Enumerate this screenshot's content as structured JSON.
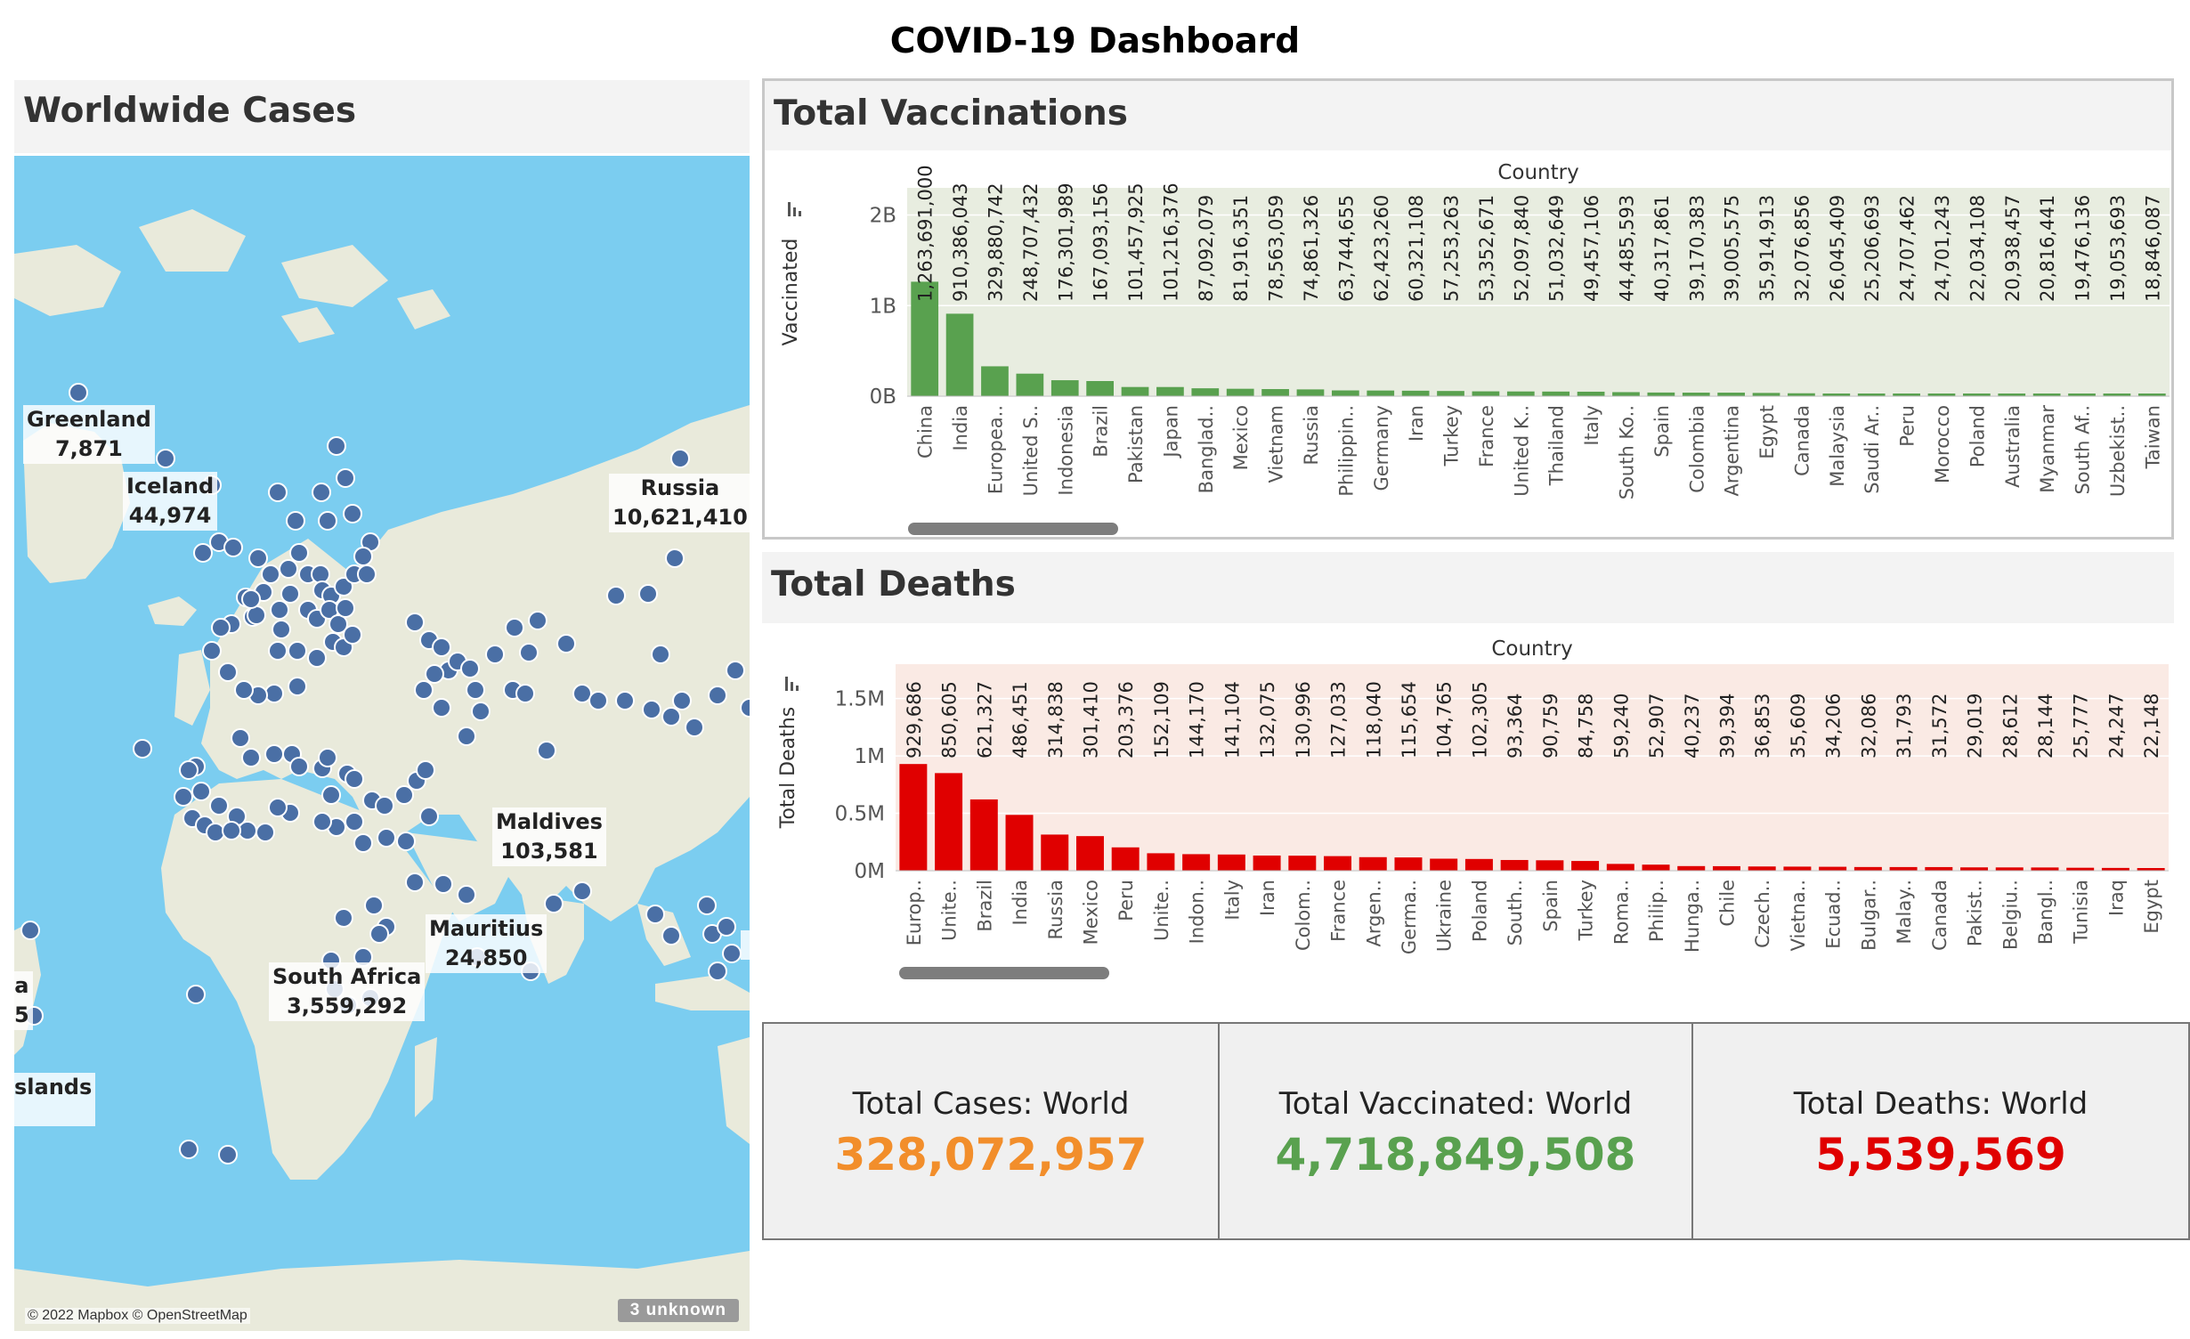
{
  "dashboard": {
    "title": "COVID-19 Dashboard"
  },
  "map_panel": {
    "title": "Worldwide Cases",
    "attribution": "© 2022 Mapbox © OpenStreetMap",
    "unknown_badge": "3 unknown",
    "point_color": "#4a6fa5",
    "labels": [
      {
        "name": "Greenland",
        "value": "7,871"
      },
      {
        "name": "Iceland",
        "value": "44,974"
      },
      {
        "name": "Russia",
        "value": "10,621,410"
      },
      {
        "name": "Maldives",
        "value": "103,581"
      },
      {
        "name": "Mauritius",
        "value": "24,850"
      },
      {
        "name": "South Africa",
        "value": "3,559,292"
      },
      {
        "name": "a",
        "value": "5"
      },
      {
        "name": "slands",
        "value": ""
      }
    ]
  },
  "vaccinations_panel": {
    "title": "Total Vaccinations",
    "header": "Country",
    "axis_label": "Vaccinated",
    "ticks": [
      "2B",
      "1B",
      "0B"
    ],
    "bar_color": "#59a14f",
    "band_color": "#e8ede0"
  },
  "deaths_panel": {
    "title": "Total Deaths",
    "header": "Country",
    "axis_label": "Total Deaths",
    "ticks": [
      "1.5M",
      "1M",
      "0.5M",
      "0M"
    ],
    "bar_color": "#e00000",
    "band_color": "#faeae4"
  },
  "kpis": [
    {
      "label": "Total Cases: World",
      "value": "328,072,957",
      "color": "#f28e2b"
    },
    {
      "label": "Total Vaccinated: World",
      "value": "4,718,849,508",
      "color": "#59a14f"
    },
    {
      "label": "Total Deaths: World",
      "value": "5,539,569",
      "color": "#e00000"
    }
  ],
  "chart_data": [
    {
      "type": "bar",
      "title": "Total Vaccinations",
      "xlabel": "Country",
      "ylabel": "Vaccinated",
      "ylim": [
        0,
        2300000000
      ],
      "categories": [
        "China",
        "India",
        "Europea..",
        "United S..",
        "Indonesia",
        "Brazil",
        "Pakistan",
        "Japan",
        "Banglad..",
        "Mexico",
        "Vietnam",
        "Russia",
        "Philippin..",
        "Germany",
        "Iran",
        "Turkey",
        "France",
        "United K..",
        "Thailand",
        "Italy",
        "South Ko..",
        "Spain",
        "Colombia",
        "Argentina",
        "Egypt",
        "Canada",
        "Malaysia",
        "Saudi Ar..",
        "Peru",
        "Morocco",
        "Poland",
        "Australia",
        "Myanmar",
        "South Af..",
        "Uzbekist..",
        "Taiwan"
      ],
      "values": [
        1263691000,
        910386043,
        329880742,
        248707432,
        176301989,
        167093156,
        101457925,
        101216376,
        87092079,
        81916351,
        78563059,
        74861326,
        63744655,
        62423260,
        60321108,
        57253263,
        53352671,
        52097840,
        51032649,
        49457106,
        44485593,
        40317861,
        39170383,
        39005575,
        35914913,
        32076856,
        26045409,
        25206693,
        24707462,
        24701243,
        22034108,
        20938457,
        20816441,
        19476136,
        19053693,
        18846087
      ],
      "data_labels": [
        "1,263,691,000",
        "910,386,043",
        "329,880,742",
        "248,707,432",
        "176,301,989",
        "167,093,156",
        "101,457,925",
        "101,216,376",
        "87,092,079",
        "81,916,351",
        "78,563,059",
        "74,861,326",
        "63,744,655",
        "62,423,260",
        "60,321,108",
        "57,253,263",
        "53,352,671",
        "52,097,840",
        "51,032,649",
        "49,457,106",
        "44,485,593",
        "40,317,861",
        "39,170,383",
        "39,005,575",
        "35,914,913",
        "32,076,856",
        "26,045,409",
        "25,206,693",
        "24,707,462",
        "24,701,243",
        "22,034,108",
        "20,938,457",
        "20,816,441",
        "19,476,136",
        "19,053,693",
        "18,846,087"
      ]
    },
    {
      "type": "bar",
      "title": "Total Deaths",
      "xlabel": "Country",
      "ylabel": "Total Deaths",
      "ylim": [
        0,
        1800000
      ],
      "categories": [
        "Europ..",
        "Unite..",
        "Brazil",
        "India",
        "Russia",
        "Mexico",
        "Peru",
        "Unite..",
        "Indon..",
        "Italy",
        "Iran",
        "Colom..",
        "France",
        "Argen..",
        "Germa..",
        "Ukraine",
        "Poland",
        "South..",
        "Spain",
        "Turkey",
        "Roma..",
        "Philip..",
        "Hunga..",
        "Chile",
        "Czech..",
        "Vietna..",
        "Ecuad..",
        "Bulgar..",
        "Malay..",
        "Canada",
        "Pakist..",
        "Belgiu..",
        "Bangl..",
        "Tunisia",
        "Iraq",
        "Egypt"
      ],
      "values": [
        929686,
        850605,
        621327,
        486451,
        314838,
        301410,
        203376,
        152109,
        144170,
        141104,
        132075,
        130996,
        127033,
        118040,
        115654,
        104765,
        102305,
        93364,
        90759,
        84758,
        59240,
        52907,
        40237,
        39394,
        36853,
        35609,
        34206,
        32086,
        31793,
        31572,
        29019,
        28612,
        28144,
        25777,
        24247,
        22148
      ],
      "data_labels": [
        "929,686",
        "850,605",
        "621,327",
        "486,451",
        "314,838",
        "301,410",
        "203,376",
        "152,109",
        "144,170",
        "141,104",
        "132,075",
        "130,996",
        "127,033",
        "118,040",
        "115,654",
        "104,765",
        "102,305",
        "93,364",
        "90,759",
        "84,758",
        "59,240",
        "52,907",
        "40,237",
        "39,394",
        "36,853",
        "35,609",
        "34,206",
        "32,086",
        "31,793",
        "31,572",
        "29,019",
        "28,612",
        "28,144",
        "25,777",
        "24,247",
        "22,148"
      ]
    }
  ]
}
